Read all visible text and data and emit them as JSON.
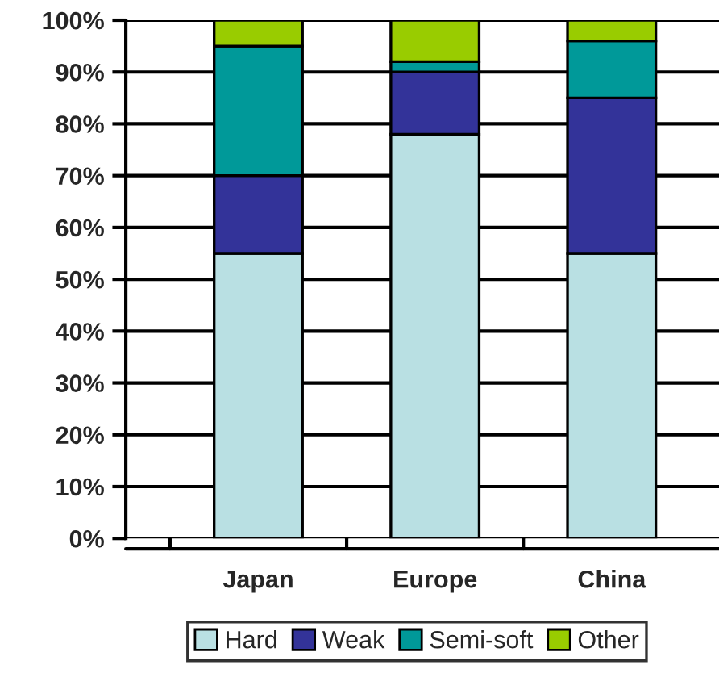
{
  "chart_data": {
    "type": "bar",
    "stacked": true,
    "categories": [
      "Japan",
      "Europe",
      "China"
    ],
    "series": [
      {
        "name": "Hard",
        "color": "#b9e0e3",
        "values": [
          55,
          78,
          55
        ]
      },
      {
        "name": "Weak",
        "color": "#333399",
        "values": [
          15,
          12,
          30
        ]
      },
      {
        "name": "Semi-soft",
        "color": "#009999",
        "values": [
          25,
          2,
          11
        ]
      },
      {
        "name": "Other",
        "color": "#99cc00",
        "values": [
          5,
          8,
          4
        ]
      }
    ],
    "ylim": [
      0,
      100
    ],
    "yticks": [
      {
        "value": 0,
        "label": "0%"
      },
      {
        "value": 10,
        "label": "10%"
      },
      {
        "value": 20,
        "label": "20%"
      },
      {
        "value": 30,
        "label": "30%"
      },
      {
        "value": 40,
        "label": "40%"
      },
      {
        "value": 50,
        "label": "50%"
      },
      {
        "value": 60,
        "label": "60%"
      },
      {
        "value": 70,
        "label": "70%"
      },
      {
        "value": 80,
        "label": "80%"
      },
      {
        "value": 90,
        "label": "90%"
      },
      {
        "value": 100,
        "label": "100%"
      }
    ],
    "grid": "y",
    "legend": "bottom"
  }
}
